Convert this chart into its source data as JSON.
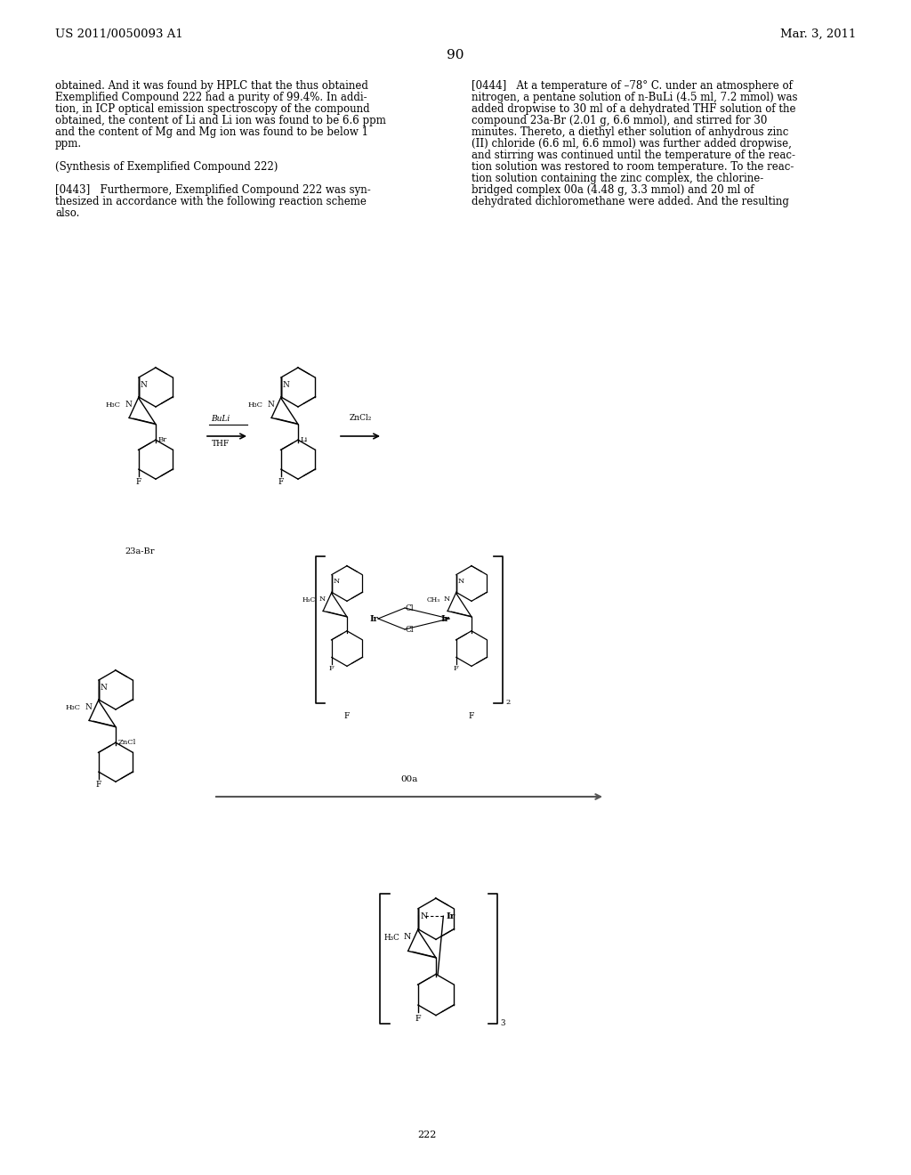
{
  "page_header_left": "US 2011/0050093 A1",
  "page_header_right": "Mar. 3, 2011",
  "page_number": "90",
  "left_col_text": [
    "obtained. And it was found by HPLC that the thus obtained",
    "Exemplified Compound 222 had a purity of 99.4%. In addi-",
    "tion, in ICP optical emission spectroscopy of the compound",
    "obtained, the content of Li and Li ion was found to be 6.6 ppm",
    "and the content of Mg and Mg ion was found to be below 1",
    "ppm.",
    "",
    "(Synthesis of Exemplified Compound 222)",
    "",
    "[0443]   Furthermore, Exemplified Compound 222 was syn-",
    "thesized in accordance with the following reaction scheme",
    "also."
  ],
  "right_col_text": [
    "[0444]   At a temperature of –78° C. under an atmosphere of",
    "nitrogen, a pentane solution of n-BuLi (4.5 ml, 7.2 mmol) was",
    "added dropwise to 30 ml of a dehydrated THF solution of the",
    "compound 23a-Br (2.01 g, 6.6 mmol), and stirred for 30",
    "minutes. Thereto, a diethyl ether solution of anhydrous zinc",
    "(II) chloride (6.6 ml, 6.6 mmol) was further added dropwise,",
    "and stirring was continued until the temperature of the reac-",
    "tion solution was restored to room temperature. To the reac-",
    "tion solution containing the zinc complex, the chlorine-",
    "bridged complex 00a (4.48 g, 3.3 mmol) and 20 ml of",
    "dehydrated dichloromethane were added. And the resulting"
  ],
  "bg_color": "#ffffff",
  "text_color": "#000000",
  "font_size_header": 9.5,
  "font_size_body": 8.5
}
